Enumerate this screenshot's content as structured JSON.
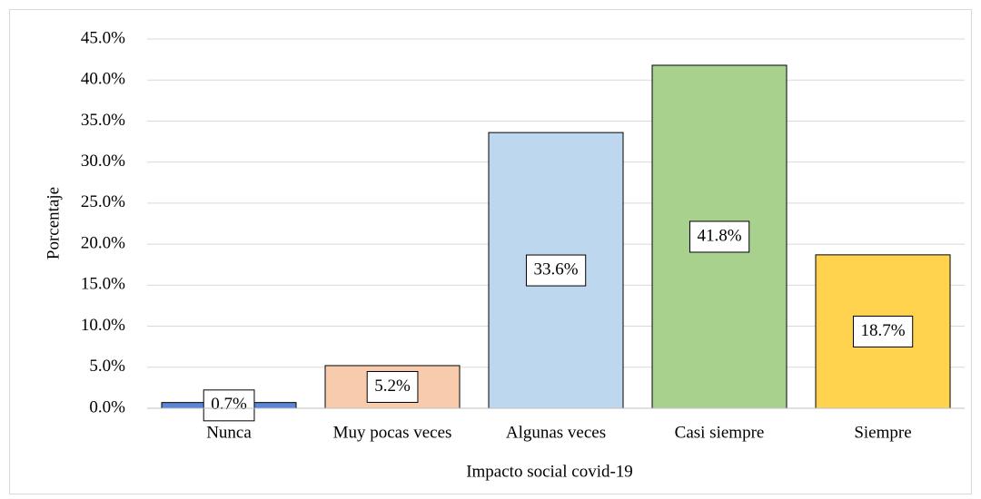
{
  "chart_data": {
    "type": "bar",
    "categories": [
      "Nunca",
      "Muy pocas veces",
      "Algunas veces",
      "Casi siempre",
      "Siempre"
    ],
    "values": [
      0.7,
      5.2,
      33.6,
      41.8,
      18.7
    ],
    "value_labels": [
      "0.7%",
      "5.2%",
      "33.6%",
      "41.8%",
      "18.7%"
    ],
    "colors": [
      "#5b86d6",
      "#f8cbad",
      "#bdd7ee",
      "#a9d18e",
      "#ffd34e"
    ],
    "xlabel": "Impacto social covid-19",
    "ylabel": "Porcentaje",
    "ylim": [
      0,
      45
    ],
    "yticks": [
      {
        "value": 0,
        "label": "0.0%"
      },
      {
        "value": 5,
        "label": "5.0%"
      },
      {
        "value": 10,
        "label": "10.0%"
      },
      {
        "value": 15,
        "label": "15.0%"
      },
      {
        "value": 20,
        "label": "20.0%"
      },
      {
        "value": 25,
        "label": "25.0%"
      },
      {
        "value": 30,
        "label": "30.0%"
      },
      {
        "value": 35,
        "label": "35.0%"
      },
      {
        "value": 40,
        "label": "40.0%"
      },
      {
        "value": 45,
        "label": "45.0%"
      }
    ],
    "grid": true
  }
}
